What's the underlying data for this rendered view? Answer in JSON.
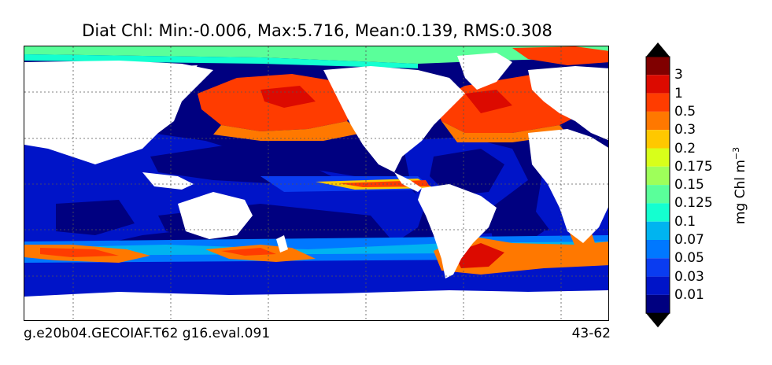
{
  "title": "Diat Chl: Min:-0.006, Max:5.716, Mean:0.139, RMS:0.308",
  "footer": {
    "case_name": "g.e20b04.GECOIAF.T62 g16.eval.091",
    "years": "43-62"
  },
  "colorbar": {
    "unit": "mg Chl m",
    "unit_exponent": "−3",
    "levels": [
      "0.01",
      "0.03",
      "0.05",
      "0.07",
      "0.1",
      "0.125",
      "0.15",
      "0.175",
      "0.2",
      "0.3",
      "0.5",
      "1",
      "3"
    ],
    "colors": [
      "#000080",
      "#0014c8",
      "#0a3cf0",
      "#0078ff",
      "#00b4f0",
      "#14ffd0",
      "#5aff9a",
      "#9eff5a",
      "#d8ff1a",
      "#ffc800",
      "#ff7800",
      "#ff3c00",
      "#dc0a00",
      "#800000"
    ]
  },
  "map": {
    "projection": "cylindrical",
    "ocean_base_color": "#000080",
    "land_color": "#ffffff",
    "grid": true
  }
}
